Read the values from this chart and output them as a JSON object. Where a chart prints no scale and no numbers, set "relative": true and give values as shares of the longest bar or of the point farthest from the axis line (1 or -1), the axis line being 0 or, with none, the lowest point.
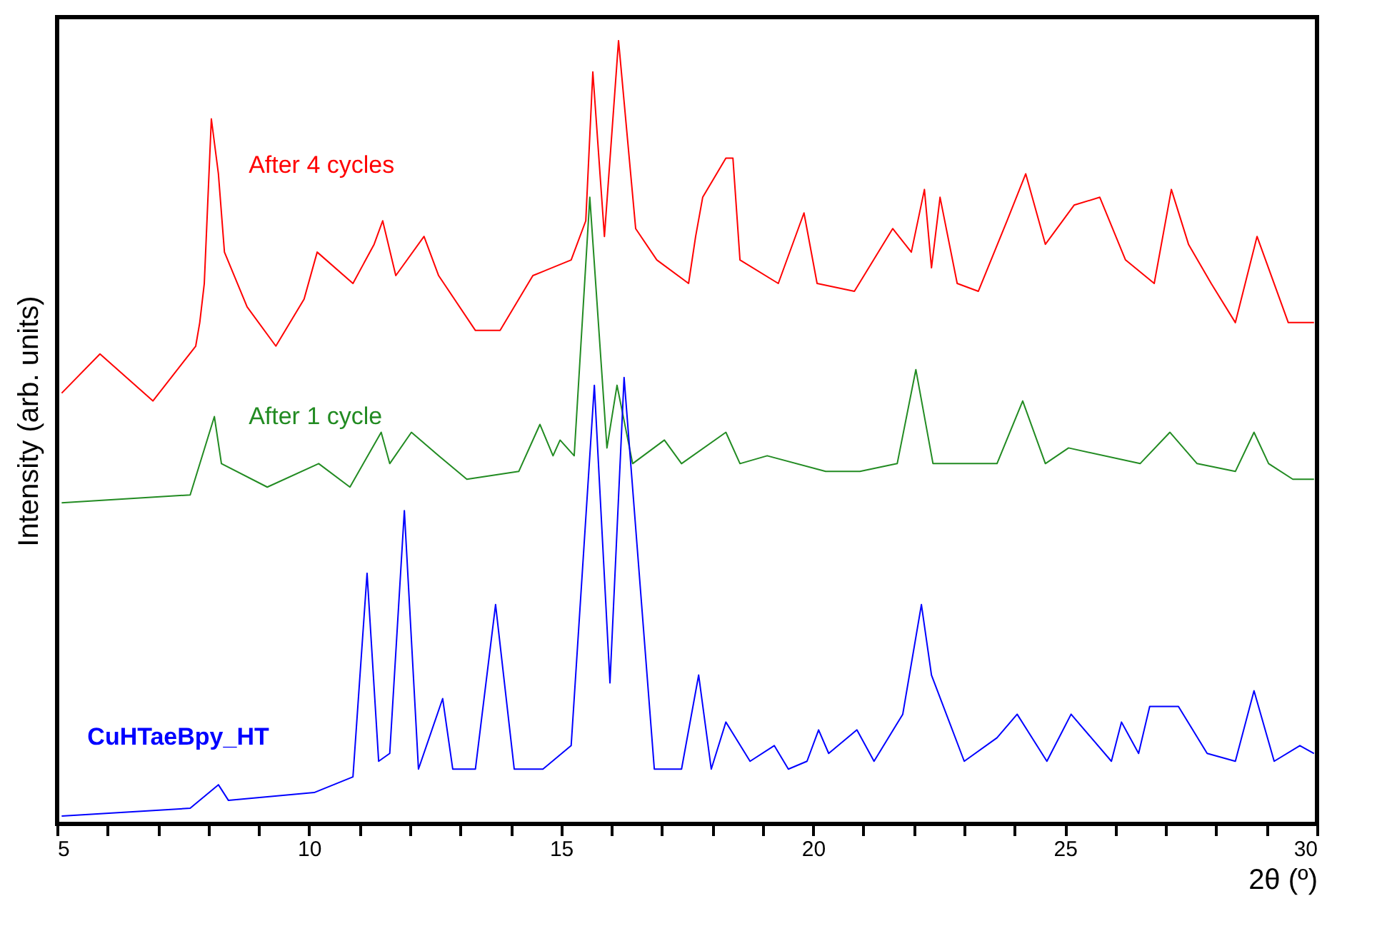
{
  "chart_data": {
    "type": "line",
    "relative": true,
    "xlabel": "2θ (º)",
    "ylabel": "Intensity (arb. units)",
    "xlim": [
      5,
      30
    ],
    "xticks": [
      5,
      {
        "value": 6,
        "label": null
      },
      {
        "value": 7,
        "label": null
      },
      {
        "value": 8,
        "label": null
      },
      {
        "value": 9,
        "label": null
      },
      10,
      {
        "value": 11,
        "label": null
      },
      {
        "value": 12,
        "label": null
      },
      {
        "value": 13,
        "label": null
      },
      {
        "value": 14,
        "label": null
      },
      15,
      {
        "value": 16,
        "label": null
      },
      {
        "value": 17,
        "label": null
      },
      {
        "value": 18,
        "label": null
      },
      {
        "value": 19,
        "label": null
      },
      20,
      {
        "value": 21,
        "label": null
      },
      {
        "value": 22,
        "label": null
      },
      {
        "value": 23,
        "label": null
      },
      {
        "value": 24,
        "label": null
      },
      25,
      {
        "value": 26,
        "label": null
      },
      {
        "value": 27,
        "label": null
      },
      {
        "value": 28,
        "label": null
      },
      {
        "value": 29,
        "label": null
      },
      30
    ],
    "grid": false,
    "line_style": "solid",
    "marker": "none",
    "series": [
      {
        "name": "After 4 cycles",
        "color": "#ff0000",
        "x": [
          5.09,
          5.85,
          6.9,
          7.75,
          7.83,
          7.92,
          8.06,
          8.2,
          8.32,
          8.77,
          9.34,
          9.9,
          10.16,
          10.87,
          11.29,
          11.46,
          11.72,
          12.28,
          12.57,
          13.3,
          13.79,
          14.44,
          15.2,
          15.49,
          15.63,
          15.86,
          16.14,
          16.48,
          16.9,
          17.53,
          17.67,
          17.81,
          18.27,
          18.41,
          18.55,
          19.31,
          19.82,
          20.08,
          20.82,
          21.58,
          21.95,
          22.21,
          22.35,
          22.52,
          22.86,
          23.28,
          23.85,
          24.22,
          24.61,
          25.18,
          25.69,
          26.2,
          26.77,
          27.11,
          27.45,
          27.9,
          28.38,
          28.81,
          29.43,
          29.94
        ],
        "values": [
          0.55,
          0.6,
          0.54,
          0.61,
          0.64,
          0.69,
          0.9,
          0.83,
          0.73,
          0.66,
          0.61,
          0.67,
          0.73,
          0.69,
          0.74,
          0.77,
          0.7,
          0.75,
          0.7,
          0.63,
          0.63,
          0.7,
          0.72,
          0.77,
          0.96,
          0.75,
          1.0,
          0.76,
          0.72,
          0.69,
          0.75,
          0.8,
          0.85,
          0.85,
          0.72,
          0.69,
          0.78,
          0.69,
          0.68,
          0.76,
          0.73,
          0.81,
          0.71,
          0.8,
          0.69,
          0.68,
          0.77,
          0.83,
          0.74,
          0.79,
          0.8,
          0.72,
          0.69,
          0.81,
          0.74,
          0.69,
          0.64,
          0.75,
          0.64,
          0.64
        ]
      },
      {
        "name": "After 1 cycle",
        "color": "#228b22",
        "x": [
          5.09,
          7.64,
          8.12,
          8.26,
          9.17,
          10.19,
          10.81,
          11.43,
          11.6,
          12.03,
          12.57,
          13.13,
          14.16,
          14.58,
          14.84,
          14.98,
          15.26,
          15.57,
          15.91,
          16.11,
          16.42,
          17.05,
          17.39,
          18.27,
          18.55,
          19.09,
          20.25,
          20.93,
          21.67,
          22.04,
          22.38,
          23.65,
          24.16,
          24.61,
          25.07,
          26.49,
          27.08,
          27.62,
          28.38,
          28.75,
          29.04,
          29.52,
          29.94
        ],
        "values": [
          0.41,
          0.42,
          0.52,
          0.46,
          0.43,
          0.46,
          0.43,
          0.5,
          0.46,
          0.5,
          0.47,
          0.44,
          0.45,
          0.51,
          0.47,
          0.49,
          0.47,
          0.8,
          0.48,
          0.56,
          0.46,
          0.49,
          0.46,
          0.5,
          0.46,
          0.47,
          0.45,
          0.45,
          0.46,
          0.58,
          0.46,
          0.46,
          0.54,
          0.46,
          0.48,
          0.46,
          0.5,
          0.46,
          0.45,
          0.5,
          0.46,
          0.44,
          0.44
        ]
      },
      {
        "name": "CuHTaeBpy_HT",
        "color": "#0000ff",
        "x": [
          5.09,
          7.64,
          8.2,
          8.4,
          10.1,
          10.87,
          11.15,
          11.38,
          11.6,
          11.89,
          12.17,
          12.65,
          12.85,
          13.3,
          13.7,
          14.07,
          14.64,
          15.2,
          15.66,
          15.97,
          16.25,
          16.85,
          17.39,
          17.73,
          17.98,
          18.27,
          18.75,
          19.23,
          19.51,
          19.88,
          20.11,
          20.31,
          20.87,
          21.21,
          21.78,
          22.15,
          22.35,
          23.0,
          23.65,
          24.05,
          24.64,
          25.12,
          25.92,
          26.12,
          26.46,
          26.68,
          27.25,
          27.82,
          28.38,
          28.75,
          29.15,
          29.66,
          29.94
        ],
        "values": [
          0.01,
          0.02,
          0.05,
          0.03,
          0.04,
          0.06,
          0.32,
          0.08,
          0.09,
          0.4,
          0.07,
          0.16,
          0.07,
          0.07,
          0.28,
          0.07,
          0.07,
          0.1,
          0.56,
          0.18,
          0.57,
          0.07,
          0.07,
          0.19,
          0.07,
          0.13,
          0.08,
          0.1,
          0.07,
          0.08,
          0.12,
          0.09,
          0.12,
          0.08,
          0.14,
          0.28,
          0.19,
          0.08,
          0.11,
          0.14,
          0.08,
          0.14,
          0.08,
          0.13,
          0.09,
          0.15,
          0.15,
          0.09,
          0.08,
          0.17,
          0.08,
          0.1,
          0.09
        ]
      }
    ]
  }
}
